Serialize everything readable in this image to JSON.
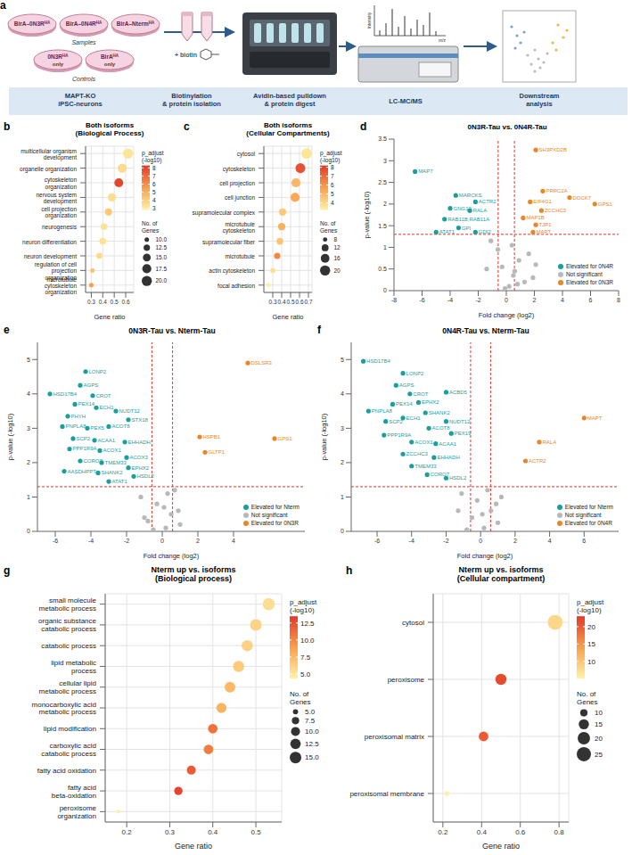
{
  "diagram": {
    "panel": "a",
    "samples": {
      "label": "Samples",
      "items": [
        {
          "text": "BirA–0N3R",
          "sup": "HA"
        },
        {
          "text": "BirA–0N4R",
          "sup": "HA"
        },
        {
          "text": "BirA–Nterm",
          "sup": "HA"
        }
      ]
    },
    "controls": {
      "label": "Controls",
      "items": [
        {
          "text": "0N3R",
          "sup": "HA",
          "suffix": "only"
        },
        {
          "text": "BirA",
          "sup": "HA",
          "suffix": "only"
        }
      ]
    },
    "reagent": "+ biotin",
    "spectrum": {
      "y_label": "Intensity",
      "x_label": "m/z"
    },
    "steps": [
      [
        "MAPT-KO",
        "iPSC-neurons"
      ],
      [
        "Biotinylation",
        "& protein isolation"
      ],
      [
        "Avidin-based pulldown",
        "& protein digest"
      ],
      [
        "LC-MC/MS"
      ],
      [
        "Downstream",
        "analysis"
      ]
    ]
  },
  "chart_data": [
    {
      "panel": "b",
      "type": "dot",
      "title": "Both isoforms",
      "subtitle": "(Biological Process)",
      "x_label": "Gene ratio",
      "grid": true,
      "categories": [
        "multicellular organism development",
        "organelle organization",
        "cytoskeleton organization",
        "nervous system development",
        "cell projection organization",
        "neurogenesis",
        "neuron differentiation",
        "neuron development",
        "regulation of cell projection organization",
        "microtubule cytoskeleton organization"
      ],
      "gene_ratio": [
        0.62,
        0.57,
        0.54,
        0.48,
        0.45,
        0.41,
        0.4,
        0.37,
        0.31,
        0.3
      ],
      "genes": [
        20,
        18,
        17,
        16,
        14,
        13,
        13,
        12,
        10,
        10
      ],
      "p_adjust": [
        3.3,
        3.6,
        8.0,
        3.5,
        4.2,
        3.4,
        3.4,
        3.6,
        4.4,
        5.6
      ],
      "xlim": [
        0.25,
        0.67
      ],
      "xticks": [
        0.3,
        0.4,
        0.5,
        0.6
      ],
      "color_bar": {
        "title": "p_adjust (-log10)",
        "range": [
          2.8,
          8.3
        ],
        "ticks": [
          3,
          4,
          5,
          6,
          7,
          8
        ],
        "colors": [
          "#FFF3A8",
          "#F9A04B",
          "#E23A2A"
        ]
      },
      "size_legend": {
        "title": "No. of Genes",
        "range": [
          9,
          21
        ],
        "ticks": [
          {
            "value": 10,
            "label": "10.0"
          },
          {
            "value": 12.5,
            "label": "12.5"
          },
          {
            "value": 15,
            "label": "15.0"
          },
          {
            "value": 17.5,
            "label": "17.5"
          },
          {
            "value": 20,
            "label": "20.0"
          }
        ]
      }
    },
    {
      "panel": "c",
      "type": "dot",
      "title": "Both isoforms",
      "subtitle": "(Cellular Compartments)",
      "x_label": "Gene ratio",
      "grid": true,
      "categories": [
        "cytosol",
        "cytoskeleton",
        "cell projection",
        "cell junction",
        "supramolecular complex",
        "microtubule cytoskeleton",
        "supramolecular fiber",
        "microtubule",
        "actin cytoskeleton",
        "focal adhesion"
      ],
      "gene_ratio": [
        0.68,
        0.61,
        0.56,
        0.55,
        0.41,
        0.4,
        0.38,
        0.35,
        0.3,
        0.25
      ],
      "genes": [
        21,
        19,
        17,
        17,
        13,
        13,
        12,
        11,
        9,
        8
      ],
      "p_adjust": [
        3.6,
        7.6,
        5.0,
        5.4,
        4.5,
        5.2,
        4.6,
        6.3,
        3.8,
        3.3
      ],
      "xlim": [
        0.2,
        0.74
      ],
      "xticks": [
        0.3,
        0.4,
        0.5,
        0.6,
        0.7
      ],
      "color_bar": {
        "title": "p_adjust (-log10)",
        "range": [
          3.2,
          8.2
        ],
        "ticks": [
          4,
          5,
          6,
          7,
          8
        ],
        "colors": [
          "#FFF3A8",
          "#F9A04B",
          "#E23A2A"
        ]
      },
      "size_legend": {
        "title": "No. of Genes",
        "range": [
          7,
          21
        ],
        "ticks": [
          8,
          12,
          16,
          20
        ]
      }
    },
    {
      "panel": "d",
      "type": "scatter",
      "title": "0N3R-Tau vs. 0N4R-Tau",
      "x_label": "Fold change (log2)",
      "y_label": "p-value (-log10)",
      "grid": false,
      "legend": "lower right",
      "xlim": [
        -8,
        8
      ],
      "xticks": [
        -8,
        -6,
        -4,
        -2,
        0,
        2,
        4,
        6,
        8
      ],
      "ylim": [
        0,
        3.5
      ],
      "yticks": [
        0,
        0.5,
        1,
        1.5,
        2,
        2.5,
        3,
        3.5
      ],
      "thresholds": {
        "x": [
          -0.58,
          0.58
        ],
        "y": 1.3
      },
      "series": [
        {
          "name": "Elevated for 0N4R",
          "color": "#1A9E9E",
          "x": [
            -6.5,
            -3.6,
            -2.2,
            -4.0,
            -2.6,
            -4.4,
            -3.4,
            -5.0,
            -2.2
          ],
          "y": [
            2.75,
            2.2,
            2.05,
            1.9,
            1.85,
            1.65,
            1.45,
            1.35,
            1.35
          ],
          "labels": [
            "MAP7",
            "MARCKS",
            "ACTR2",
            "GNG12",
            "RALA",
            "RAB11B;RAB11A",
            "GPI",
            "ATAT1",
            "GDI2"
          ]
        },
        {
          "name": "Not significant",
          "color": "#B8B8B8",
          "x": [
            0.2,
            0.5,
            -0.3,
            0.9,
            1.3,
            -0.6,
            0.4,
            1.6,
            2.1,
            -1.4,
            0.8,
            -0.1,
            1.9,
            -1.1,
            0.6
          ],
          "y": [
            0.1,
            0.35,
            0.55,
            0.7,
            0.2,
            0.95,
            1.05,
            0.85,
            0.6,
            0.5,
            0.15,
            0.05,
            0.3,
            1.15,
            0.45
          ]
        },
        {
          "name": "Elevated for 0N3R",
          "color": "#E8862A",
          "x": [
            2.1,
            2.6,
            4.5,
            6.3,
            1.7,
            2.5,
            1.2,
            2.1,
            1.9
          ],
          "y": [
            3.25,
            2.3,
            2.15,
            2.0,
            2.05,
            1.85,
            1.68,
            1.52,
            1.35
          ],
          "labels": [
            "SH3PXD2B",
            "PRRC2A",
            "DOCK7",
            "GPS1",
            "EIF4G1",
            "ZCCHC3",
            "MAP1B",
            "TJP1",
            "MAPT"
          ]
        }
      ]
    },
    {
      "panel": "e",
      "type": "scatter",
      "title": "0N3R-Tau vs. Nterm-Tau",
      "x_label": "Fold change (log2)",
      "y_label": "p-value (-log10)",
      "grid": false,
      "legend": "lower right",
      "xlim": [
        -7,
        8
      ],
      "xticks": [
        -6,
        -4,
        -2,
        0,
        2,
        4
      ],
      "ylim": [
        0,
        5.5
      ],
      "yticks": [
        0,
        1,
        2,
        3,
        4,
        5
      ],
      "thresholds": {
        "x": [
          -0.58,
          0.58
        ],
        "y": 1.3
      },
      "series": [
        {
          "name": "Elevated for Nterm",
          "color": "#1A9E9E",
          "x": [
            -6.3,
            -4.3,
            -4.6,
            -3.9,
            -4.9,
            -3.7,
            -5.3,
            -2.6,
            -5.6,
            -4.2,
            -3.0,
            -1.9,
            -5.0,
            -3.8,
            -5.2,
            -3.5,
            -2.1,
            -2.0,
            -4.6,
            -3.4,
            -3.6,
            -5.5,
            -1.9,
            -3.0,
            -1.6
          ],
          "y": [
            4.0,
            4.65,
            4.25,
            3.95,
            3.7,
            3.6,
            3.35,
            3.5,
            3.05,
            3.0,
            3.05,
            3.25,
            2.7,
            2.65,
            2.4,
            2.35,
            2.6,
            2.15,
            2.05,
            2.0,
            1.7,
            1.75,
            1.85,
            1.45,
            1.6
          ],
          "labels": [
            "HSD17B4",
            "LONP2",
            "AGPS",
            "CROT",
            "PEX14",
            "ECH1",
            "PHYH",
            "NUDT12",
            "PNPLA8",
            "PEX5",
            "ACOT8",
            "STX18",
            "SCP2",
            "ACAA1",
            "PPP1R9A",
            "ACOX1",
            "EHHADH",
            "ACOX3",
            "CORO7",
            "TMEM33",
            "SHANK2",
            "AASDHPPT",
            "EPHX2",
            "ATAT1",
            "HSDL2"
          ]
        },
        {
          "name": "Not significant",
          "color": "#B8B8B8",
          "x": [
            -0.8,
            0.2,
            0.5,
            -0.3,
            1.0,
            -1.2,
            0.3,
            -0.5,
            0.9,
            -1.0,
            0.1,
            0.7
          ],
          "y": [
            0.3,
            0.1,
            0.5,
            0.8,
            0.2,
            1.0,
            1.1,
            0.05,
            0.6,
            0.4,
            0.7,
            1.2
          ]
        },
        {
          "name": "Elevated for 0N3R",
          "color": "#E8862A",
          "x": [
            4.8,
            2.1,
            6.3,
            2.4
          ],
          "y": [
            4.9,
            2.75,
            2.7,
            2.3
          ],
          "labels": [
            "DSLSR3",
            "HSPB1",
            "GPS1",
            "GLTP1"
          ]
        }
      ]
    },
    {
      "panel": "f",
      "type": "scatter",
      "title": "0N4R-Tau vs. Nterm-Tau",
      "x_label": "Fold change (log2)",
      "y_label": "p-value (-log10)",
      "grid": false,
      "legend": "lower right",
      "xlim": [
        -7.5,
        8
      ],
      "xticks": [
        -6,
        -4,
        -2,
        0,
        2,
        4,
        6
      ],
      "ylim": [
        0,
        5.5
      ],
      "yticks": [
        0,
        1,
        2,
        3,
        4,
        5
      ],
      "thresholds": {
        "x": [
          -0.58,
          0.58
        ],
        "y": 1.3
      },
      "series": [
        {
          "name": "Elevated for Nterm",
          "color": "#1A9E9E",
          "x": [
            -6.8,
            -4.5,
            -4.9,
            -4.1,
            -2.0,
            -5.1,
            -3.6,
            -3.2,
            -6.5,
            -5.5,
            -2.0,
            -4.5,
            -3.0,
            -1.7,
            -5.6,
            -4.0,
            -2.6,
            -4.5,
            -2.7,
            -4.0,
            -3.1,
            -2.0
          ],
          "y": [
            4.95,
            4.6,
            4.25,
            4.0,
            4.05,
            3.7,
            3.75,
            3.45,
            3.5,
            3.2,
            3.2,
            3.3,
            3.0,
            2.85,
            2.8,
            2.6,
            2.55,
            2.25,
            2.15,
            1.9,
            1.65,
            1.55
          ],
          "labels": [
            "HSD17B4",
            "LONP2",
            "AGPS",
            "CROT",
            "ACBD5",
            "PEX14",
            "EPHX2",
            "SHANK2",
            "PNPLA8",
            "SCP2",
            "NUDT12",
            "ECH1",
            "ACOT8",
            "PEX19",
            "PPP1R9A",
            "ACOX1",
            "ACAA1",
            "ZCCHC3",
            "EHHADH",
            "TMEM33",
            "CORO7",
            "HSDL2"
          ]
        },
        {
          "name": "Not significant",
          "color": "#B8B8B8",
          "x": [
            -0.5,
            0.2,
            0.6,
            -0.2,
            1.0,
            -1.1,
            0.4,
            -0.8,
            0.9,
            0.1,
            -1.3,
            1.2
          ],
          "y": [
            0.4,
            0.1,
            0.6,
            0.9,
            0.25,
            1.1,
            1.2,
            0.05,
            0.8,
            0.5,
            0.6,
            1.0
          ]
        },
        {
          "name": "Elevated for 0N4R",
          "color": "#E8862A",
          "x": [
            6.0,
            3.4,
            2.6
          ],
          "y": [
            3.3,
            2.6,
            2.05
          ],
          "labels": [
            "MAPT",
            "RALA",
            "ACTR2"
          ]
        }
      ]
    },
    {
      "panel": "g",
      "type": "dot",
      "title": "Nterm up vs. isoforms",
      "subtitle": "(Biological process)",
      "x_label": "Gene ratio",
      "grid": true,
      "categories": [
        "small molecule metabolic process",
        "organic substance catabolic process",
        "catabolic process",
        "lipid metabolic process",
        "cellular lipid metabolic process",
        "monocarboxylic acid metabolic process",
        "lipid modification",
        "carboxylic acid catabolic process",
        "fatty acid oxidation",
        "fatty acid beta-oxidation",
        "peroxisome organization"
      ],
      "gene_ratio": [
        0.53,
        0.5,
        0.48,
        0.46,
        0.44,
        0.42,
        0.4,
        0.39,
        0.35,
        0.32,
        0.18
      ],
      "genes": [
        16,
        15,
        14,
        14,
        13,
        12,
        11,
        11,
        10,
        9,
        4
      ],
      "p_adjust": [
        5.5,
        6.0,
        6.2,
        6.5,
        7.5,
        7.8,
        11.0,
        10.5,
        12.0,
        13.0,
        4.5
      ],
      "xlim": [
        0.15,
        0.56
      ],
      "xticks": [
        0.2,
        0.3,
        0.4,
        0.5
      ],
      "color_bar": {
        "title": "p_adjust (-log10)",
        "range": [
          4.3,
          13.5
        ],
        "ticks": [
          {
            "value": 5,
            "label": "5.0"
          },
          {
            "value": 7.5,
            "label": "7.5"
          },
          {
            "value": 10,
            "label": "10.0"
          },
          {
            "value": 12.5,
            "label": "12.5"
          }
        ],
        "colors": [
          "#FFF3A8",
          "#F9A04B",
          "#E23A2A"
        ]
      },
      "size_legend": {
        "title": "No. of Genes",
        "range": [
          3.5,
          16.5
        ],
        "ticks": [
          {
            "value": 5,
            "label": "5.0"
          },
          {
            "value": 7.5,
            "label": "7.5"
          },
          {
            "value": 10,
            "label": "10.0"
          },
          {
            "value": 12.5,
            "label": "12.5"
          },
          {
            "value": 15,
            "label": "15.0"
          }
        ]
      }
    },
    {
      "panel": "h",
      "type": "dot",
      "title": "Nterm up vs. isoforms",
      "subtitle": "(Cellular compartment)",
      "x_label": "Gene ratio",
      "grid": true,
      "categories": [
        "cytosol",
        "peroxisome",
        "peroxisomal matrix",
        "peroxisomal membrane"
      ],
      "gene_ratio": [
        0.78,
        0.5,
        0.41,
        0.22
      ],
      "genes": [
        27,
        17,
        14,
        7
      ],
      "p_adjust": [
        8.0,
        21.5,
        20.0,
        5.5
      ],
      "xlim": [
        0.15,
        0.85
      ],
      "xticks": [
        0.2,
        0.4,
        0.6,
        0.8
      ],
      "color_bar": {
        "title": "p_adjust (-log10)",
        "range": [
          5,
          23
        ],
        "ticks": [
          10,
          15,
          20
        ],
        "colors": [
          "#FFF3A8",
          "#F9A04B",
          "#E23A2A"
        ]
      },
      "size_legend": {
        "title": "No. of Genes",
        "range": [
          6,
          28
        ],
        "ticks": [
          10,
          15,
          20,
          25
        ]
      }
    }
  ]
}
